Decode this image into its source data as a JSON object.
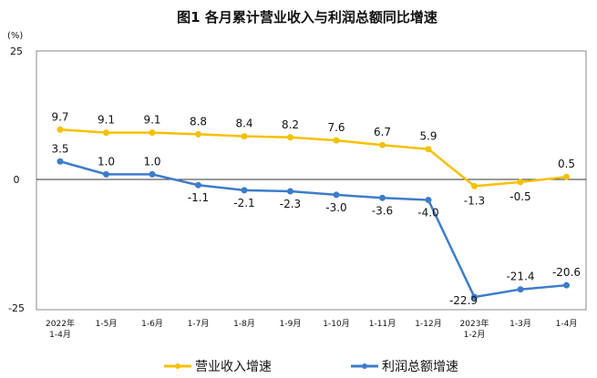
{
  "chart_data": {
    "type": "line",
    "title": "图1  各月累计营业收入与利润总额同比增速",
    "ylabel": "(%)",
    "ylim": [
      -25,
      25
    ],
    "yticks": [
      25,
      0,
      -25
    ],
    "grid": false,
    "legend_position": "bottom",
    "categories": [
      "2022年\n1-4月",
      "1-5月",
      "1-6月",
      "1-7月",
      "1-8月",
      "1-9月",
      "1-10月",
      "1-11月",
      "1-12月",
      "2023年\n1-2月",
      "1-3月",
      "1-4月"
    ],
    "series": [
      {
        "name": "营业收入增速",
        "color": "#F5C000",
        "values": [
          9.7,
          9.1,
          9.1,
          8.8,
          8.4,
          8.2,
          7.6,
          6.7,
          5.9,
          -1.3,
          -0.5,
          0.5
        ]
      },
      {
        "name": "利润总额增速",
        "color": "#3D7CC9",
        "values": [
          3.5,
          1.0,
          1.0,
          -1.1,
          -2.1,
          -2.3,
          -3.0,
          -3.6,
          -4.0,
          -22.9,
          -21.4,
          -20.6
        ]
      }
    ]
  }
}
